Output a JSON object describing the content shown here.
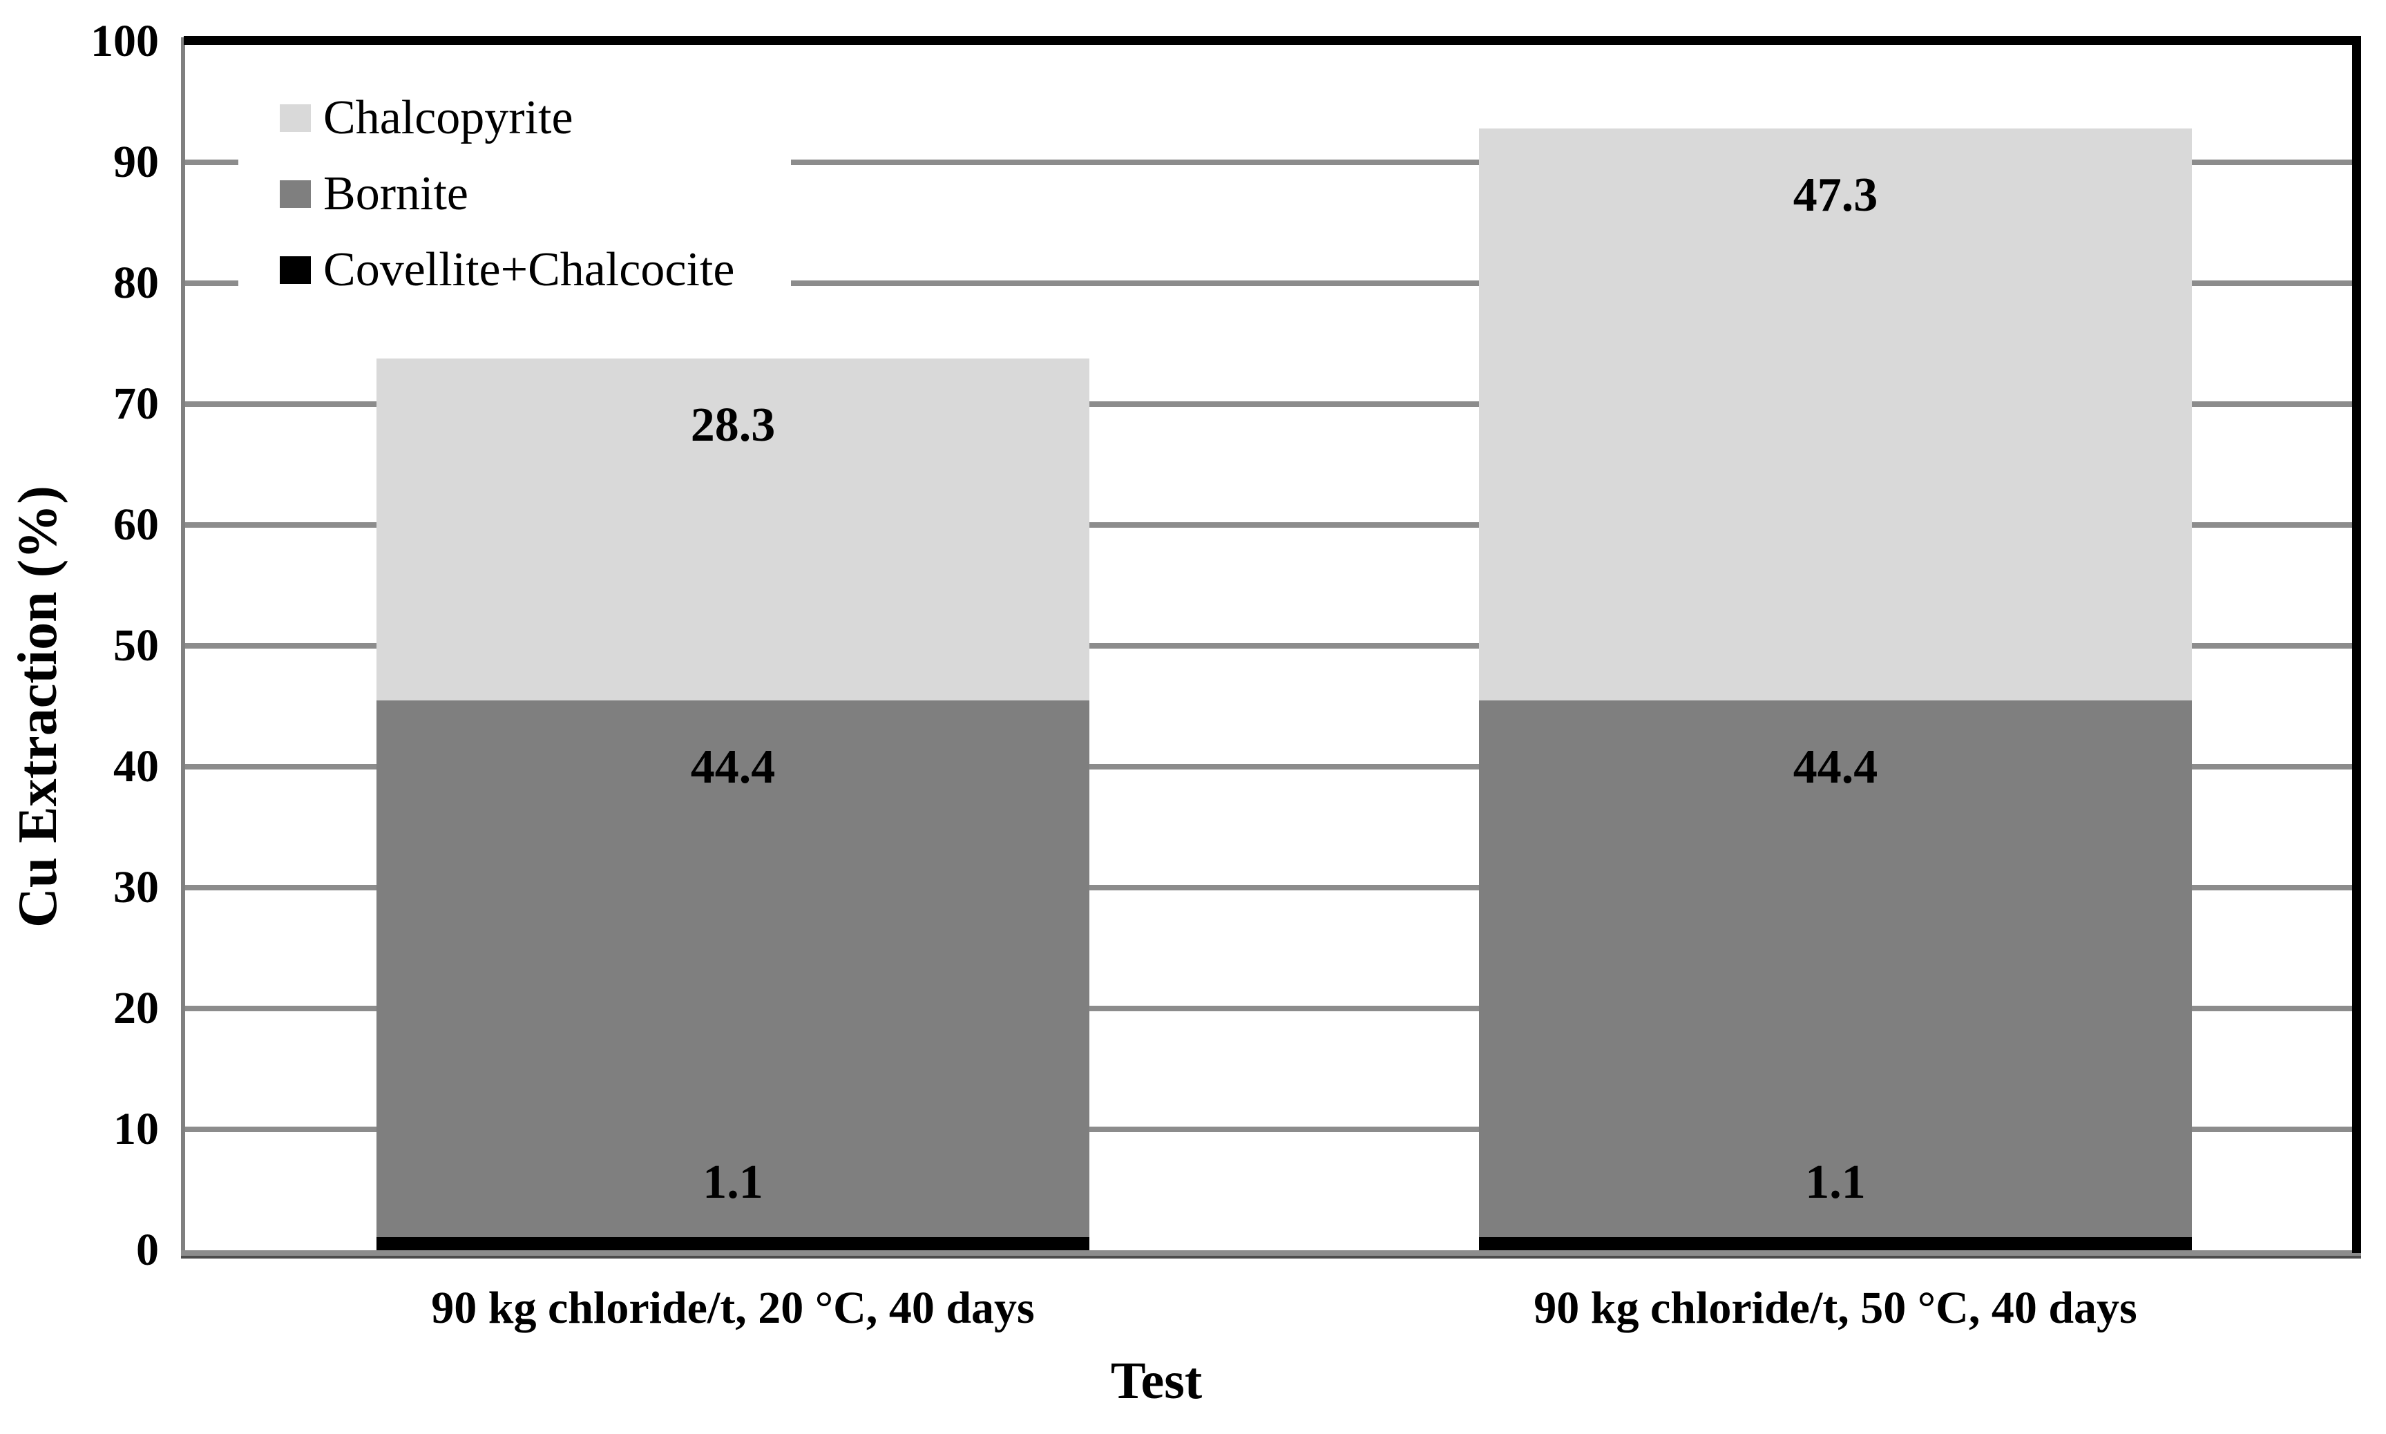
{
  "chart_data": {
    "type": "bar",
    "stacked": true,
    "title": "",
    "xlabel": "Test",
    "ylabel": "Cu Extraction (%)",
    "categories": [
      "90 kg chloride/t, 20 °C, 40 days",
      "90 kg chloride/t, 50 °C, 40 days"
    ],
    "series": [
      {
        "name": "Covellite+Chalcocite",
        "values": [
          1.1,
          1.1
        ],
        "color": "#000000"
      },
      {
        "name": "Bornite",
        "values": [
          44.4,
          44.4
        ],
        "color": "#7f7f7f"
      },
      {
        "name": "Chalcopyrite",
        "values": [
          28.3,
          47.3
        ],
        "color": "#d9d9d9"
      }
    ],
    "data_labels": true,
    "ylim": [
      0,
      100
    ],
    "ytick_step": 10,
    "yticks": [
      0,
      10,
      20,
      30,
      40,
      50,
      60,
      70,
      80,
      90,
      100
    ],
    "grid": true,
    "legend_position": "top-left-inside",
    "legend_order": [
      "Chalcopyrite",
      "Bornite",
      "Covellite+Chalcocite"
    ]
  },
  "colors": {
    "gridline": "#8c8c8c",
    "axis_gray": "#808080",
    "frame_black": "#000000",
    "background": "#ffffff",
    "label_text": "#000000"
  }
}
